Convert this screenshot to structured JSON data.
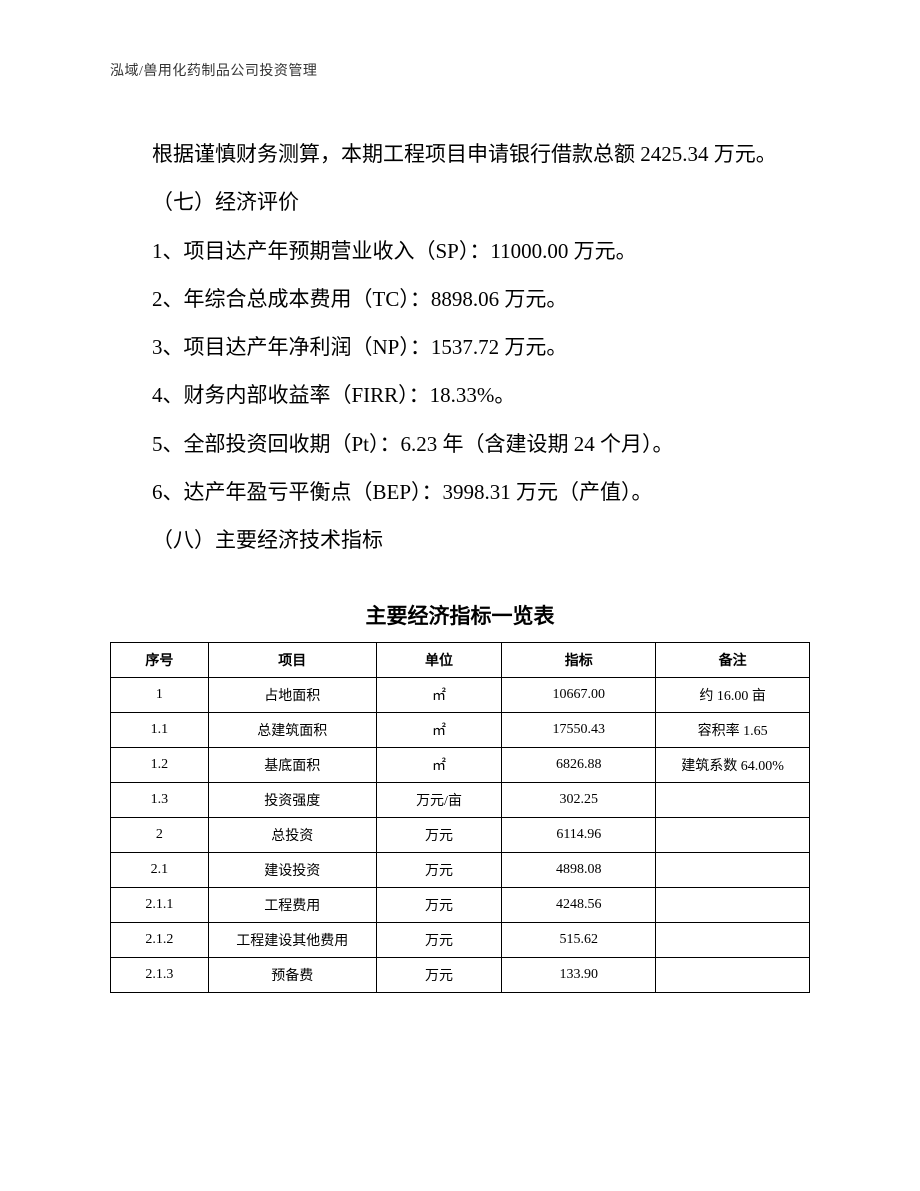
{
  "header": "泓域/兽用化药制品公司投资管理",
  "paragraphs": {
    "p1": "根据谨慎财务测算，本期工程项目申请银行借款总额 2425.34 万元。",
    "p2": "（七）经济评价",
    "p3": "1、项目达产年预期营业收入（SP）：11000.00 万元。",
    "p4": "2、年综合总成本费用（TC）：8898.06 万元。",
    "p5": "3、项目达产年净利润（NP）：1537.72 万元。",
    "p6": "4、财务内部收益率（FIRR）：18.33%。",
    "p7": "5、全部投资回收期（Pt）：6.23 年（含建设期 24 个月）。",
    "p8": "6、达产年盈亏平衡点（BEP）：3998.31 万元（产值）。",
    "p9": "（八）主要经济技术指标"
  },
  "table": {
    "title": "主要经济指标一览表",
    "headers": {
      "seq": "序号",
      "item": "项目",
      "unit": "单位",
      "value": "指标",
      "note": "备注"
    },
    "rows": [
      {
        "seq": "1",
        "item": "占地面积",
        "unit": "㎡",
        "value": "10667.00",
        "note": "约 16.00 亩"
      },
      {
        "seq": "1.1",
        "item": "总建筑面积",
        "unit": "㎡",
        "value": "17550.43",
        "note": "容积率 1.65"
      },
      {
        "seq": "1.2",
        "item": "基底面积",
        "unit": "㎡",
        "value": "6826.88",
        "note": "建筑系数 64.00%"
      },
      {
        "seq": "1.3",
        "item": "投资强度",
        "unit": "万元/亩",
        "value": "302.25",
        "note": ""
      },
      {
        "seq": "2",
        "item": "总投资",
        "unit": "万元",
        "value": "6114.96",
        "note": ""
      },
      {
        "seq": "2.1",
        "item": "建设投资",
        "unit": "万元",
        "value": "4898.08",
        "note": ""
      },
      {
        "seq": "2.1.1",
        "item": "工程费用",
        "unit": "万元",
        "value": "4248.56",
        "note": ""
      },
      {
        "seq": "2.1.2",
        "item": "工程建设其他费用",
        "unit": "万元",
        "value": "515.62",
        "note": ""
      },
      {
        "seq": "2.1.3",
        "item": "预备费",
        "unit": "万元",
        "value": "133.90",
        "note": ""
      }
    ]
  }
}
